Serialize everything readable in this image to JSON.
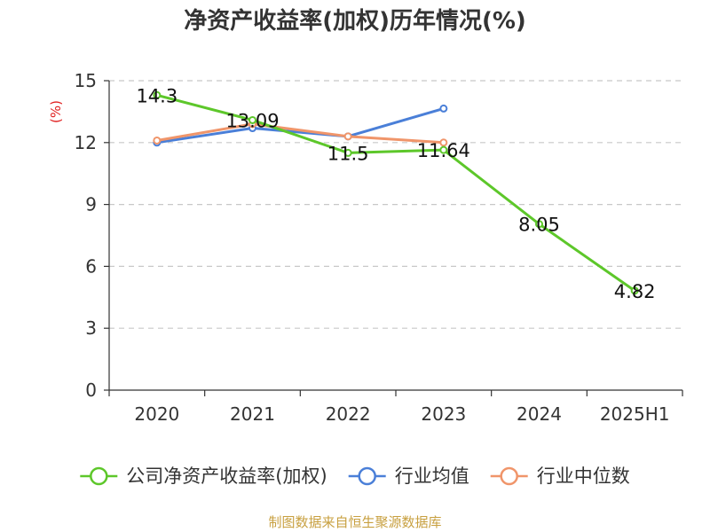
{
  "chart_data": {
    "type": "line",
    "title": "净资产收益率(加权)历年情况(%)",
    "ylabel": "(%)",
    "xlabel": "",
    "categories": [
      "2020",
      "2021",
      "2022",
      "2023",
      "2024",
      "2025H1"
    ],
    "ylim": [
      0,
      15
    ],
    "yticks": [
      0,
      3,
      6,
      9,
      12,
      15
    ],
    "grid": true,
    "legend_position": "bottom",
    "series": [
      {
        "name": "公司净资产收益率(加权)",
        "color": "#5dc72a",
        "values": [
          14.3,
          13.09,
          11.5,
          11.64,
          8.05,
          4.82
        ],
        "labels": [
          "14.3",
          "13.09",
          "11.5",
          "11.64",
          "8.05",
          "4.82"
        ]
      },
      {
        "name": "行业均值",
        "color": "#4a7fd8",
        "values": [
          12.0,
          12.7,
          12.3,
          13.65,
          null,
          null
        ]
      },
      {
        "name": "行业中位数",
        "color": "#f0956a",
        "values": [
          12.1,
          12.9,
          12.3,
          12.0,
          null,
          null
        ]
      }
    ],
    "source": "制图数据来自恒生聚源数据库"
  }
}
